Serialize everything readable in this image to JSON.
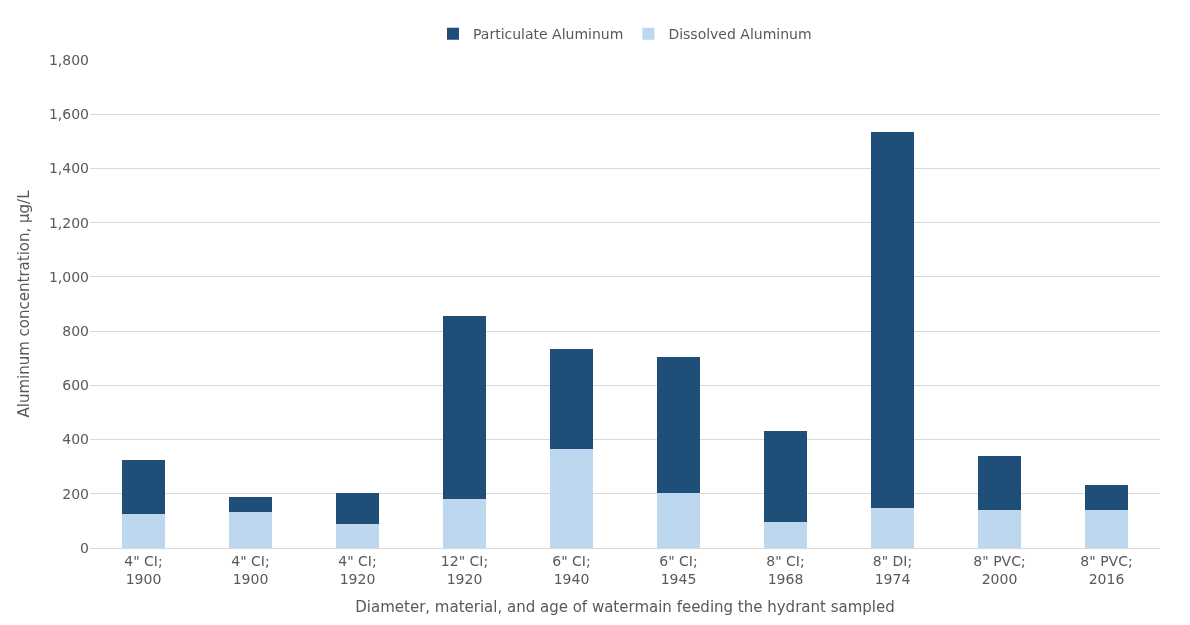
{
  "chart_data": {
    "type": "bar",
    "stacked": true,
    "xlabel": "Diameter, material, and age of watermain feeding the hydrant sampled",
    "ylabel": "Aluminum concentration, µg/L",
    "categories": [
      "4\" CI;\n1900",
      "4\" CI;\n1900",
      "4\" CI;\n1920",
      "12\" CI;\n1920",
      "6\" CI;\n1940",
      "6\" CI;\n1945",
      "8\" CI;\n1968",
      "8\" DI;\n1974",
      "8\" PVC;\n2000",
      "8\" PVC;\n2016"
    ],
    "series": [
      {
        "name": "Dissolved Aluminum",
        "color": "#bdd7ee",
        "values": [
          127,
          134,
          87,
          180,
          364,
          202,
          95,
          148,
          140,
          140
        ]
      },
      {
        "name": "Particulate Aluminum",
        "color": "#1f4e79",
        "values": [
          199,
          55,
          117,
          675,
          369,
          501,
          338,
          1387,
          201,
          92
        ]
      }
    ],
    "ylim": [
      0,
      1800
    ],
    "yticks": [
      0,
      200,
      400,
      600,
      800,
      {
        "value": 1000,
        "label": "1,000"
      },
      {
        "value": 1200,
        "label": "1,200"
      },
      {
        "value": 1400,
        "label": "1,400"
      },
      {
        "value": 1600,
        "label": "1,600"
      },
      {
        "value": 1800,
        "label": "1,800"
      }
    ],
    "grid": "y",
    "legend": "top"
  }
}
